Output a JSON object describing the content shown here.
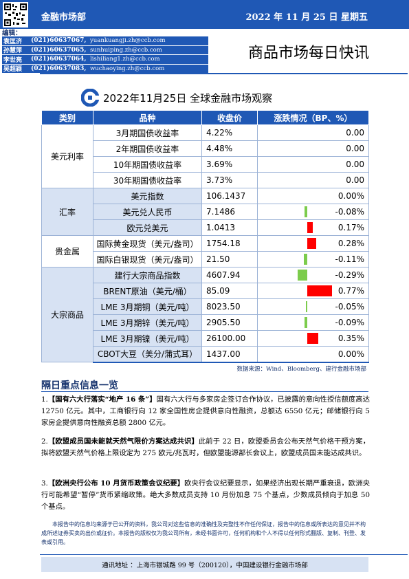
{
  "header": {
    "dept": "金融市场部",
    "date": "2022 年 11 月 25 日  星期五"
  },
  "editors": {
    "heading": "编辑：",
    "list": [
      {
        "name": "袁匡济",
        "phone": "(021)60637067,",
        "email": "yuankuangji.zh@ccb.com"
      },
      {
        "name": "孙慧萍",
        "phone": "(021)60637065,",
        "email": "sunhuiping.zh@ccb.com"
      },
      {
        "name": "李世亮",
        "phone": "(021)60637064,",
        "email": "lishiliang1.zh@ccb.com"
      },
      {
        "name": "吴超颖",
        "phone": "(021)60637083,",
        "email": "wuchaoying.zh@ccb.com"
      }
    ]
  },
  "app_title": "商品市场每日快讯",
  "subtitle": "2022年11月25日 全球金融市场观察",
  "table": {
    "headers": [
      "类别",
      "品种",
      "收盘价",
      "涨跌情况（BP、%）"
    ],
    "groups": [
      {
        "category": "美元利率",
        "rows": [
          {
            "name": "3月期国债收益率",
            "close": "4.22%",
            "change": "0.00",
            "value": 0.0
          },
          {
            "name": "2年期国债收益率",
            "close": "4.48%",
            "change": "0.00",
            "value": 0.0
          },
          {
            "name": "10年期国债收益率",
            "close": "3.69%",
            "change": "0.00",
            "value": 0.0
          },
          {
            "name": "30年期国债收益率",
            "close": "3.73%",
            "change": "0.00",
            "value": 0.0
          }
        ]
      },
      {
        "category": "汇率",
        "rows": [
          {
            "name": "美元指数",
            "close": "106.1437",
            "change": "0.00%",
            "value": 0.0
          },
          {
            "name": "美元兑人民币",
            "close": "7.1486",
            "change": "-0.08%",
            "value": -0.08
          },
          {
            "name": "欧元兑美元",
            "close": "1.0413",
            "change": "0.17%",
            "value": 0.17
          }
        ]
      },
      {
        "category": "贵金属",
        "rows": [
          {
            "name": "国际黄金现货（美元/盎司）",
            "close": "1754.18",
            "change": "0.28%",
            "value": 0.28
          },
          {
            "name": "国际白银现货（美元/盎司）",
            "close": "21.50",
            "change": "-0.11%",
            "value": -0.11
          }
        ]
      },
      {
        "category": "大宗商品",
        "rows": [
          {
            "name": "建行大宗商品指数",
            "close": "4607.94",
            "change": "-0.29%",
            "value": -0.29
          },
          {
            "name": "BRENT原油（美元/桶）",
            "close": "85.09",
            "change": "0.77%",
            "value": 0.77
          },
          {
            "name": "LME 3月期铜（美元/吨）",
            "close": "8023.50",
            "change": "-0.05%",
            "value": -0.05
          },
          {
            "name": "LME 3月期锌（美元/吨）",
            "close": "2905.50",
            "change": "-0.09%",
            "value": -0.09
          },
          {
            "name": "LME 3月期镍（美元/吨）",
            "close": "26100.00",
            "change": "0.35%",
            "value": 0.35
          },
          {
            "name": "CBOT大豆（美分/蒲式耳）",
            "close": "1437.00",
            "change": "0.00%",
            "value": 0.0
          }
        ]
      }
    ],
    "colors": {
      "up": "#ff0000",
      "down": "#7ccc4c"
    }
  },
  "source": "数据来源：Wind、Bloomberg、建行金融市场部",
  "news_section_title": "隔日重点信息一览",
  "news": [
    {
      "num": "1.",
      "headline": "【国有六大行落实“地产 16 条”】",
      "body": "国有六大行与多家房企签订合作协议，已披露的意向性授信额度高达 12750 亿元。其中，工商银行向 12 家全国性房企提供意向性融资，总额达 6550 亿元；邮储银行向 5 家房企提供意向性融资总额 2800 亿元。"
    },
    {
      "num": "2.",
      "headline": "【欧盟成员国未能就天然气限价方案达成共识】",
      "body": "此前于 22 日，欧盟委员会公布天然气价格干预方案，拟将欧盟天然气价格上限设定为 275 欧元/兆瓦时，但欧盟能源部长会议上，欧盟成员国未能达成共识。"
    },
    {
      "num": "3.",
      "headline": "【欧洲央行公布 10 月货币政策会议纪要】",
      "body": "欧央行会议纪要显示，如果经济出现长期严重衰退，欧洲央行可能希望“暂停”货币紧缩政策。绝大多数成员支持 10 月份加息 75 个基点，少数成员倾向于加息 50 个基点。"
    }
  ],
  "disclaimer": "本报告中的信息均来源于已公开的资料，我公司对这些信息的准确性及完整性不作任何保证，报告中的信息或所表达的意见并不构成所述证券买卖的出价或征价。本报告的版权仅为我公司所有，未经书面许可，任何机构和个人不得以任何形式翻版、复制、刊登、发表或引用。",
  "footer": "通讯地址 ：上海市银城路 99 号（200120），中国建设银行金融市场部"
}
